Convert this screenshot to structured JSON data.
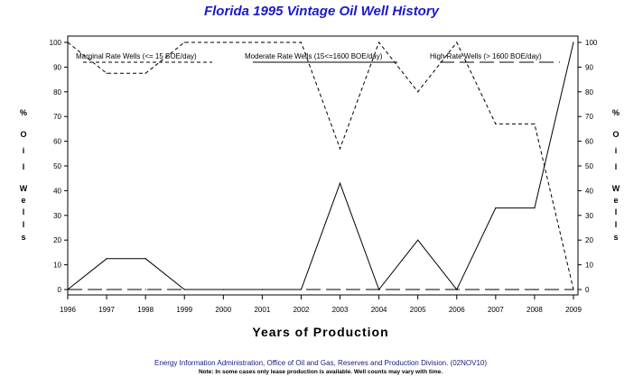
{
  "chart_data": {
    "type": "line",
    "title": "Florida 1995 Vintage Oil Well History",
    "xlabel": "Years of Production",
    "ylabel_left": [
      "%",
      "O",
      "i",
      "l",
      "W",
      "e",
      "l",
      "l",
      "s"
    ],
    "ylabel_right": [
      "%",
      "O",
      "i",
      "l",
      "W",
      "e",
      "l",
      "l",
      "s"
    ],
    "x": [
      "1996",
      "1997",
      "1998",
      "1999",
      "2000",
      "2001",
      "2002",
      "2003",
      "2004",
      "2005",
      "2006",
      "2007",
      "2008",
      "2009"
    ],
    "ylim": [
      0,
      100
    ],
    "yticks": [
      "0",
      "10",
      "20",
      "30",
      "40",
      "50",
      "60",
      "70",
      "80",
      "90",
      "100"
    ],
    "grid": false,
    "legend_position": "top",
    "series": [
      {
        "name": "Marginal Rate Wells (<= 15 BOE/day)",
        "style": "short-dash",
        "values": [
          100,
          87.5,
          87.5,
          100,
          100,
          100,
          100,
          57,
          100,
          80,
          100,
          67,
          67,
          0
        ]
      },
      {
        "name": "Moderate Rate Wells (15<=1600 BOE/day)",
        "style": "solid",
        "values": [
          0,
          12.5,
          12.5,
          0,
          0,
          0,
          0,
          43,
          0,
          20,
          0,
          33,
          33,
          100
        ]
      },
      {
        "name": "High Rate Wells (> 1600 BOE/day)",
        "style": "long-dash",
        "values": [
          0,
          0,
          0,
          0,
          0,
          0,
          0,
          0,
          0,
          0,
          0,
          0,
          0,
          0
        ]
      }
    ]
  },
  "footer": "Energy Information Administration, Office of Oil and Gas, Reserves and Production Division. (02NOV10)",
  "note": "Note: In some cases only lease production is available. Well counts may vary with time."
}
